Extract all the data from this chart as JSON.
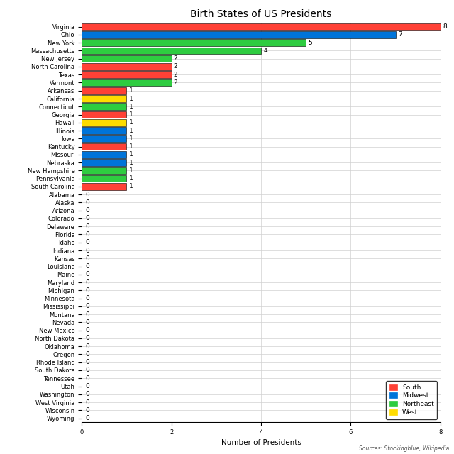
{
  "title": "Birth States of US Presidents",
  "xlabel": "Number of Presidents",
  "source_text": "Sources: Stockingblue, Wikipedia",
  "states": [
    "Virginia",
    "Ohio",
    "New York",
    "Massachusetts",
    "New Jersey",
    "North Carolina",
    "Texas",
    "Vermont",
    "Arkansas",
    "California",
    "Connecticut",
    "Georgia",
    "Hawaii",
    "Illinois",
    "Iowa",
    "Kentucky",
    "Missouri",
    "Nebraska",
    "New Hampshire",
    "Pennsylvania",
    "South Carolina",
    "Alabama",
    "Alaska",
    "Arizona",
    "Colorado",
    "Delaware",
    "Florida",
    "Idaho",
    "Indiana",
    "Kansas",
    "Louisiana",
    "Maine",
    "Maryland",
    "Michigan",
    "Minnesota",
    "Mississippi",
    "Montana",
    "Nevada",
    "New Mexico",
    "North Dakota",
    "Oklahoma",
    "Oregon",
    "Rhode Island",
    "South Dakota",
    "Tennessee",
    "Utah",
    "Washington",
    "West Virginia",
    "Wisconsin",
    "Wyoming"
  ],
  "values": [
    8,
    7,
    5,
    4,
    2,
    2,
    2,
    2,
    1,
    1,
    1,
    1,
    1,
    1,
    1,
    1,
    1,
    1,
    1,
    1,
    1,
    0,
    0,
    0,
    0,
    0,
    0,
    0,
    0,
    0,
    0,
    0,
    0,
    0,
    0,
    0,
    0,
    0,
    0,
    0,
    0,
    0,
    0,
    0,
    0,
    0,
    0,
    0,
    0,
    0
  ],
  "regions": [
    "South",
    "Midwest",
    "Northeast",
    "Northeast",
    "Northeast",
    "South",
    "South",
    "Northeast",
    "South",
    "West",
    "Northeast",
    "South",
    "West",
    "Midwest",
    "Midwest",
    "South",
    "Midwest",
    "Midwest",
    "Northeast",
    "Northeast",
    "South",
    "South",
    "West",
    "West",
    "West",
    "South",
    "South",
    "West",
    "Midwest",
    "Midwest",
    "South",
    "Northeast",
    "South",
    "Midwest",
    "Midwest",
    "South",
    "West",
    "West",
    "West",
    "Midwest",
    "South",
    "West",
    "Northeast",
    "Midwest",
    "South",
    "West",
    "West",
    "South",
    "Midwest",
    "West"
  ],
  "region_colors": {
    "South": "#FF4136",
    "Midwest": "#0074D9",
    "Northeast": "#2ECC40",
    "West": "#FFDC00"
  },
  "bar_height": 0.85,
  "xlim": [
    0,
    8
  ],
  "figsize": [
    6.4,
    6.4
  ],
  "dpi": 100,
  "title_fontsize": 10,
  "label_fontsize": 6.5,
  "tick_fontsize": 6,
  "xlabel_fontsize": 7.5,
  "source_fontsize": 5.5,
  "legend_fontsize": 6.5
}
